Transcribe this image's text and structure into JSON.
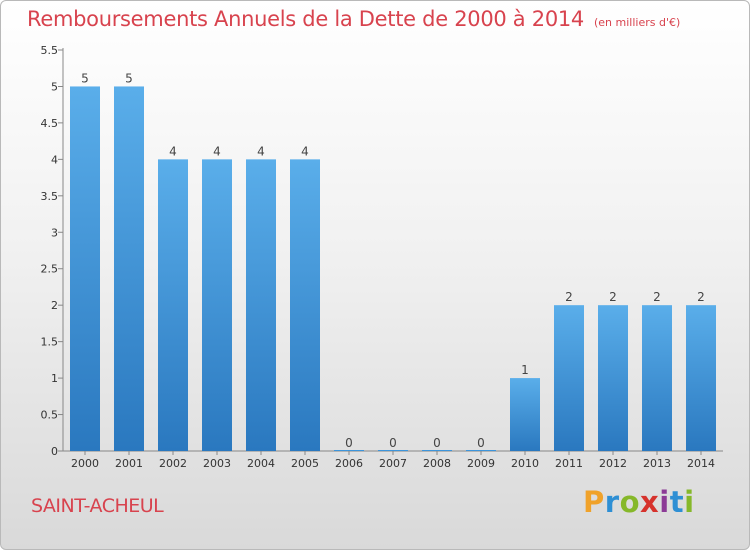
{
  "header": {
    "title": "Remboursements Annuels de la Dette de 2000 à 2014",
    "unit": "(en milliers d'€)"
  },
  "footer": {
    "commune": "SAINT-ACHEUL",
    "logo_letters": [
      "P",
      "r",
      "o",
      "x",
      "i",
      "t",
      "i"
    ],
    "logo_colors": [
      "#f0a22a",
      "#2e8fd4",
      "#86b82a",
      "#d6322c",
      "#8c3a96",
      "#2e8fd4",
      "#86b82a"
    ]
  },
  "chart_data": {
    "type": "bar",
    "title": "Remboursements Annuels de la Dette de 2000 à 2014",
    "categories": [
      "2000",
      "2001",
      "2002",
      "2003",
      "2004",
      "2005",
      "2006",
      "2007",
      "2008",
      "2009",
      "2010",
      "2011",
      "2012",
      "2013",
      "2014"
    ],
    "values": [
      5,
      5,
      4,
      4,
      4,
      4,
      0,
      0,
      0,
      0,
      1,
      2,
      2,
      2,
      2
    ],
    "data_labels": [
      "5",
      "5",
      "4",
      "4",
      "4",
      "4",
      "0",
      "0",
      "0",
      "0",
      "1",
      "2",
      "2",
      "2",
      "2"
    ],
    "ylim": [
      0,
      5.5
    ],
    "yticks": [
      0,
      0.5,
      1,
      1.5,
      2,
      2.5,
      3,
      3.5,
      4,
      4.5,
      5,
      5.5
    ],
    "ytick_labels": [
      "0",
      "0.5",
      "1",
      "1.5",
      "2",
      "2.5",
      "3",
      "3.5",
      "4",
      "4.5",
      "5",
      "5.5"
    ],
    "grid": false,
    "bar_color": "#3d95db",
    "bar_color_dark": "#2a78bf",
    "xlabel": "",
    "ylabel": ""
  }
}
